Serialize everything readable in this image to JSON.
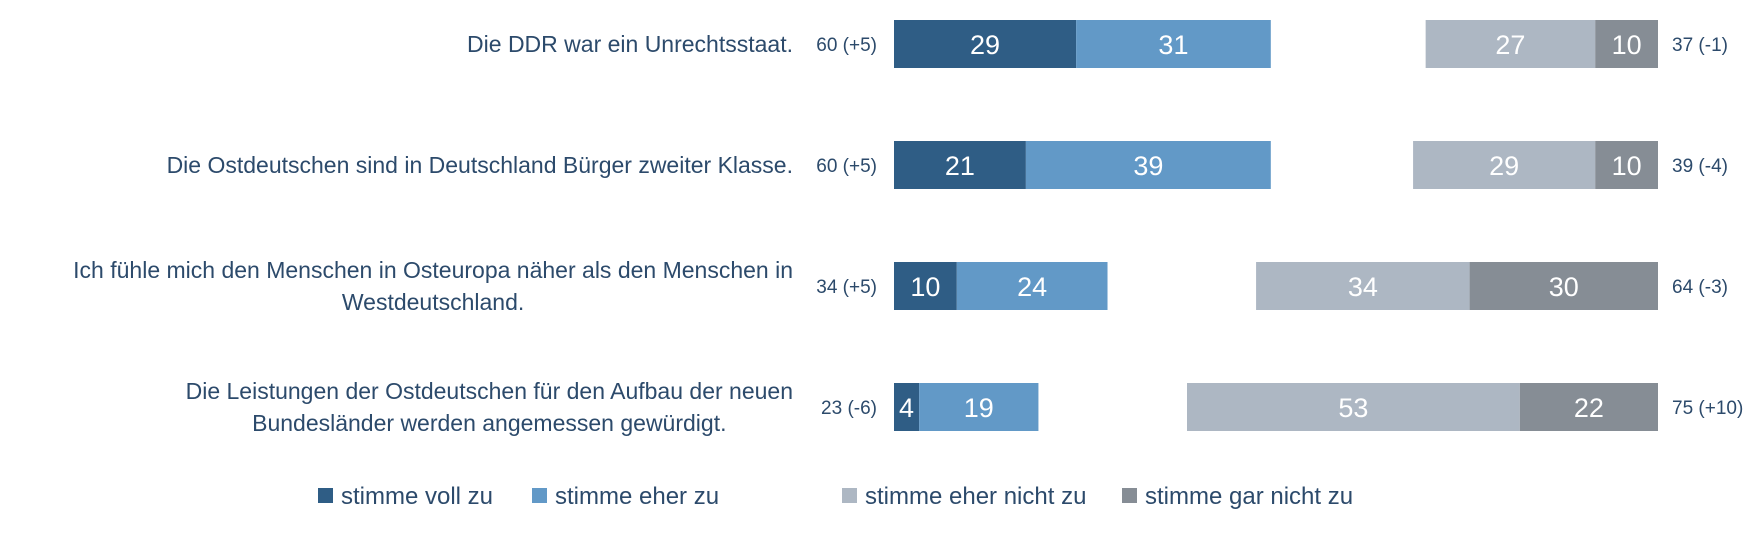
{
  "chart_data": {
    "type": "bar",
    "orientation": "horizontal",
    "stacked": true,
    "diverging": true,
    "statements": [
      "Die DDR war ein Unrechtsstaat.",
      "Die Ostdeutschen sind in Deutschland Bürger zweiter Klasse.",
      "Ich fühle mich den Menschen in Osteuropa näher als den Menschen in Westdeutschland.",
      "Die Leistungen der Ostdeutschen für den Aufbau der neuen Bundesländer werden angemessen gewürdigt."
    ],
    "series": [
      {
        "name": "stimme voll zu",
        "color": "#2f5d85",
        "values": [
          29,
          21,
          10,
          4
        ]
      },
      {
        "name": "stimme eher zu",
        "color": "#6299c7",
        "values": [
          31,
          39,
          24,
          19
        ]
      },
      {
        "name": "stimme eher nicht zu",
        "color": "#adb7c3",
        "values": [
          27,
          29,
          34,
          53
        ]
      },
      {
        "name": "stimme gar nicht zu",
        "color": "#868d95",
        "values": [
          10,
          10,
          30,
          22
        ]
      }
    ],
    "agree_totals": [
      "60 (+5)",
      "60 (+5)",
      "34 (+5)",
      "23 (-6)"
    ],
    "disagree_totals": [
      "37 (-1)",
      "39 (-4)",
      "64 (-3)",
      "75 (+10)"
    ],
    "legend_position": "bottom"
  }
}
